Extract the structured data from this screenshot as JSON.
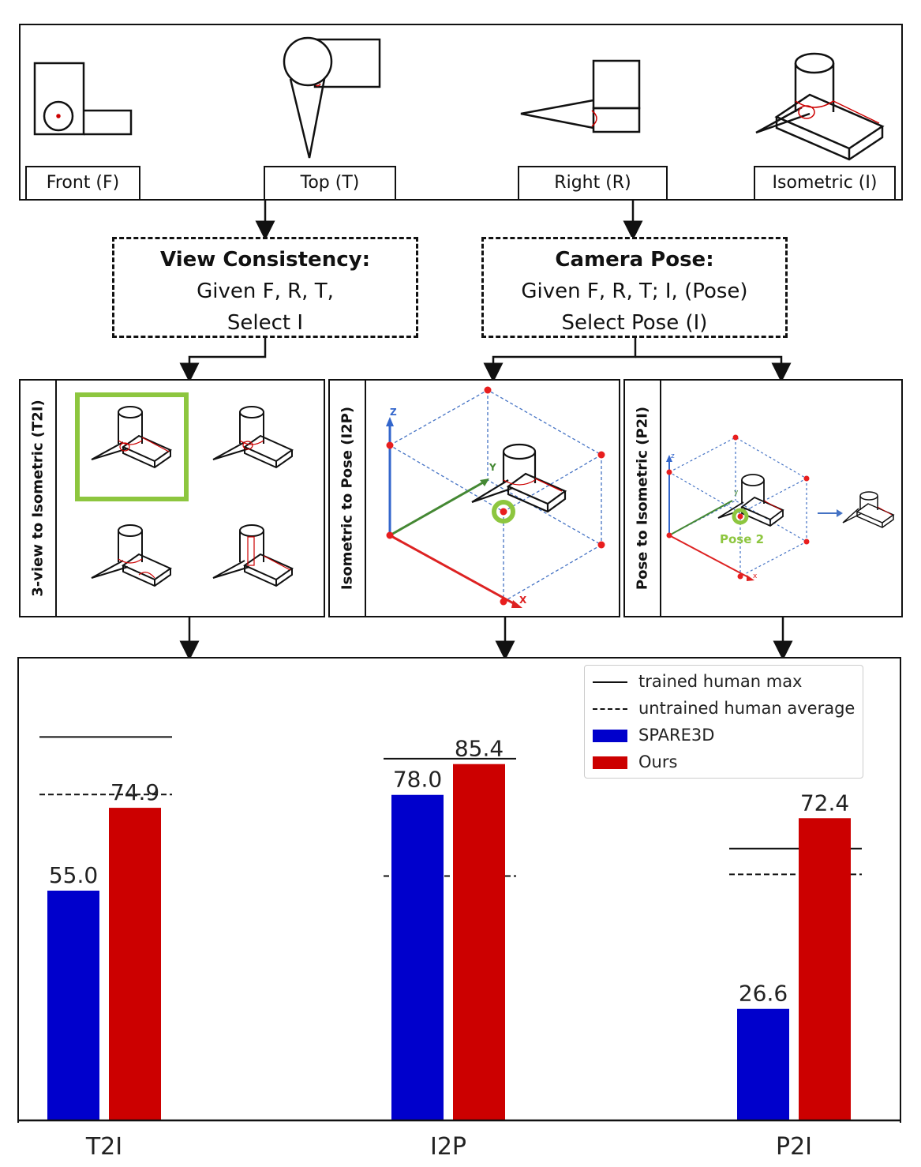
{
  "views": {
    "front": "Front (F)",
    "top": "Top (T)",
    "right": "Right (R)",
    "isometric": "Isometric (I)"
  },
  "tasks": {
    "view_consistency": {
      "title": "View Consistency:",
      "line1": "Given F, R, T,",
      "line2": "Select I"
    },
    "camera_pose": {
      "title": "Camera Pose:",
      "line1": "Given F, R, T; I, (Pose)",
      "line2": "Select Pose (I)"
    }
  },
  "subtasks": {
    "t2i": "3-view to Isometric (T2I)",
    "i2p": "Isometric to Pose (I2P)",
    "p2i": "Pose to Isometric (P2I)"
  },
  "i2p_axes": {
    "x": "X",
    "y": "Y",
    "z": "Z"
  },
  "p2i_axes": {
    "x": "x",
    "y": "y",
    "z": "z"
  },
  "p2i_pose_label": "Pose 2",
  "colors": {
    "spare3d": "#0000cc",
    "ours": "#cc0000",
    "highlight": "#8dc63f",
    "axis_x": "#dd2222",
    "axis_y": "#448833",
    "axis_z": "#3366cc",
    "cube_edge": "#4472c4"
  },
  "chart_data": {
    "type": "bar",
    "categories": [
      "T2I",
      "I2P",
      "P2I"
    ],
    "series": [
      {
        "name": "SPARE3D",
        "values": [
          55.0,
          78.0,
          26.6
        ]
      },
      {
        "name": "Ours",
        "values": [
          74.9,
          85.4,
          72.4
        ]
      }
    ],
    "value_labels": {
      "SPARE3D": [
        "55.0",
        "78.0",
        "26.6"
      ],
      "Ours": [
        "74.9",
        "85.4",
        "72.4"
      ]
    },
    "reference_lines": [
      {
        "name": "trained human max",
        "style": "solid",
        "values": [
          91.9,
          86.7,
          65.1
        ]
      },
      {
        "name": "untrained human average",
        "style": "dashed",
        "values": [
          78.1,
          58.5,
          58.9
        ]
      }
    ],
    "legend": [
      "trained human max",
      "untrained human average",
      "SPARE3D",
      "Ours"
    ],
    "legend_placement": "top-right",
    "ylim": [
      0,
      110
    ],
    "grid": false
  }
}
